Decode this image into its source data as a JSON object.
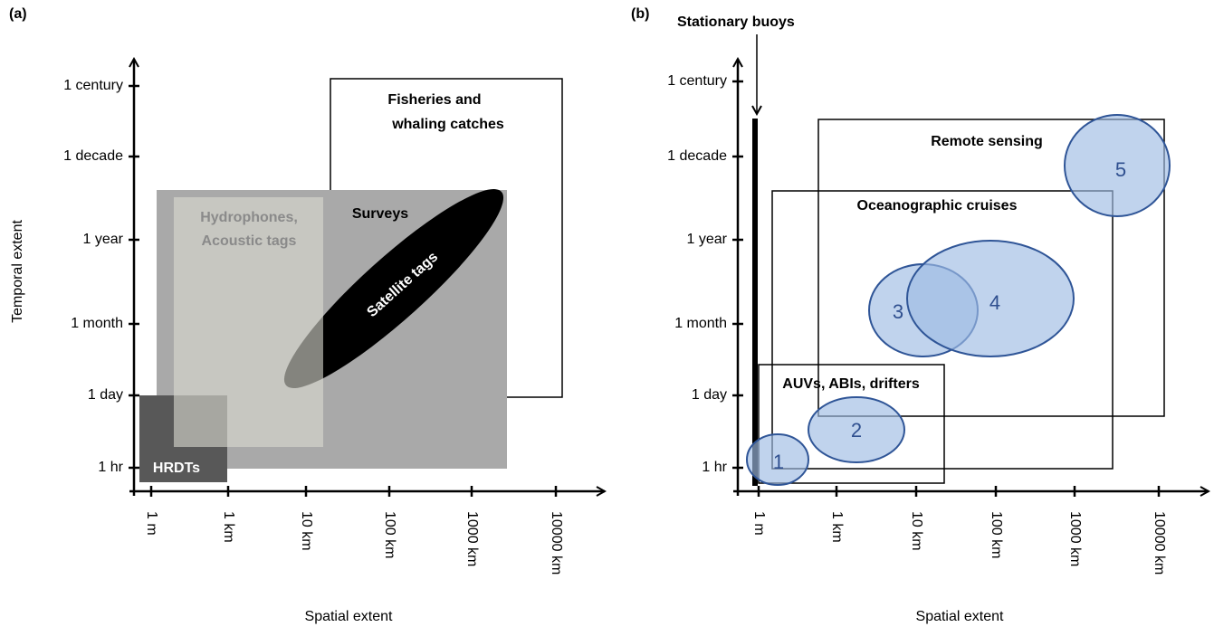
{
  "panels": [
    {
      "label": "(a)",
      "y_axis": {
        "title": "Temporal extent",
        "ticks": [
          "1 century",
          "1 decade",
          "1 year",
          "1 month",
          "1 day",
          "1 hr"
        ]
      },
      "x_axis": {
        "title": "Spatial extent",
        "ticks": [
          "1 m",
          "1 km",
          "10 km",
          "100 km",
          "1000 km",
          "10000 km"
        ]
      },
      "regions": {
        "fisheries": [
          "Fisheries and",
          "whaling catches"
        ],
        "surveys": "Surveys",
        "hydrophones": [
          "Hydrophones,",
          "Acoustic tags"
        ],
        "satellite": "Satellite tags",
        "hrdts": "HRDTs"
      }
    },
    {
      "label": "(b)",
      "y_axis": {
        "title": "Temporal extent",
        "ticks": [
          "1 century",
          "1 decade",
          "1 year",
          "1 month",
          "1 day",
          "1 hr"
        ]
      },
      "x_axis": {
        "title": "Spatial extent",
        "ticks": [
          "1 m",
          "1 km",
          "10 km",
          "100 km",
          "1000 km",
          "10000 km"
        ]
      },
      "regions": {
        "buoys": "Stationary buoys",
        "remote": "Remote sensing",
        "cruises": "Oceanographic cruises",
        "auvs": "AUVs, ABIs, drifters"
      },
      "markers": [
        "1",
        "2",
        "3",
        "4",
        "5"
      ]
    }
  ]
}
